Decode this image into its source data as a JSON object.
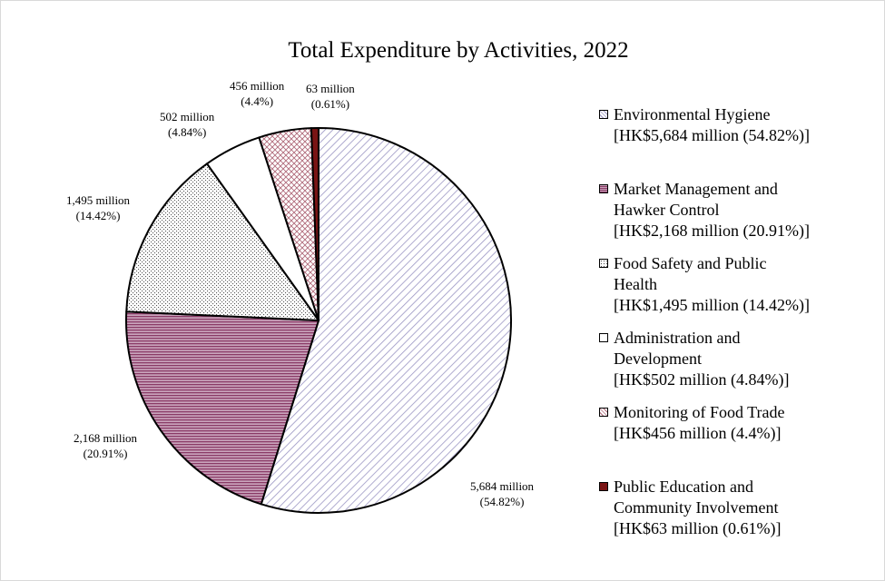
{
  "chart_data": {
    "type": "pie",
    "title": "Total Expenditure by Activities, 2022",
    "legend_position": "right",
    "slices": [
      {
        "name": "Environmental Hygiene",
        "value": 5684,
        "percent": 54.82,
        "label_value": "5,684 million",
        "label_percent": "(54.82%)",
        "legend_name_lines": [
          "Environmental Hygiene"
        ],
        "legend_amount": "[HK$5,684 million (54.82%)]",
        "color": "#9b96c4",
        "pattern": "diag"
      },
      {
        "name": "Market Management and Hawker Control",
        "value": 2168,
        "percent": 20.91,
        "label_value": "2,168 million",
        "label_percent": "(20.91%)",
        "legend_name_lines": [
          "Market Management and",
          "Hawker Control"
        ],
        "legend_amount": "[HK$2,168 million (20.91%)]",
        "color": "#8a3a66",
        "pattern": "dense"
      },
      {
        "name": "Food Safety and Public Health",
        "value": 1495,
        "percent": 14.42,
        "label_value": "1,495 million",
        "label_percent": "(14.42%)",
        "legend_name_lines": [
          "Food Safety and Public",
          "Health"
        ],
        "legend_amount": "[HK$1,495 million (14.42%)]",
        "color": "#555555",
        "pattern": "dots"
      },
      {
        "name": "Administration and Development",
        "value": 502,
        "percent": 4.84,
        "label_value": "502 million",
        "label_percent": "(4.84%)",
        "legend_name_lines": [
          "Administration and",
          "Development"
        ],
        "legend_amount": "[HK$502 million (4.84%)]",
        "color": "#ffffff",
        "pattern": "solid"
      },
      {
        "name": "Monitoring of Food Trade",
        "value": 456,
        "percent": 4.4,
        "label_value": "456 million",
        "label_percent": "(4.4%)",
        "legend_name_lines": [
          "Monitoring of Food Trade"
        ],
        "legend_amount": "[HK$456 million (4.4%)]",
        "color": "#b06a7a",
        "pattern": "cross"
      },
      {
        "name": "Public Education and Community Involvement",
        "value": 63,
        "percent": 0.61,
        "label_value": "63 million",
        "label_percent": "(0.61%)",
        "legend_name_lines": [
          "Public Education and",
          "Community Involvement"
        ],
        "legend_amount": "[HK$63 million (0.61%)]",
        "color": "#7a1414",
        "pattern": "solidfill"
      }
    ]
  }
}
